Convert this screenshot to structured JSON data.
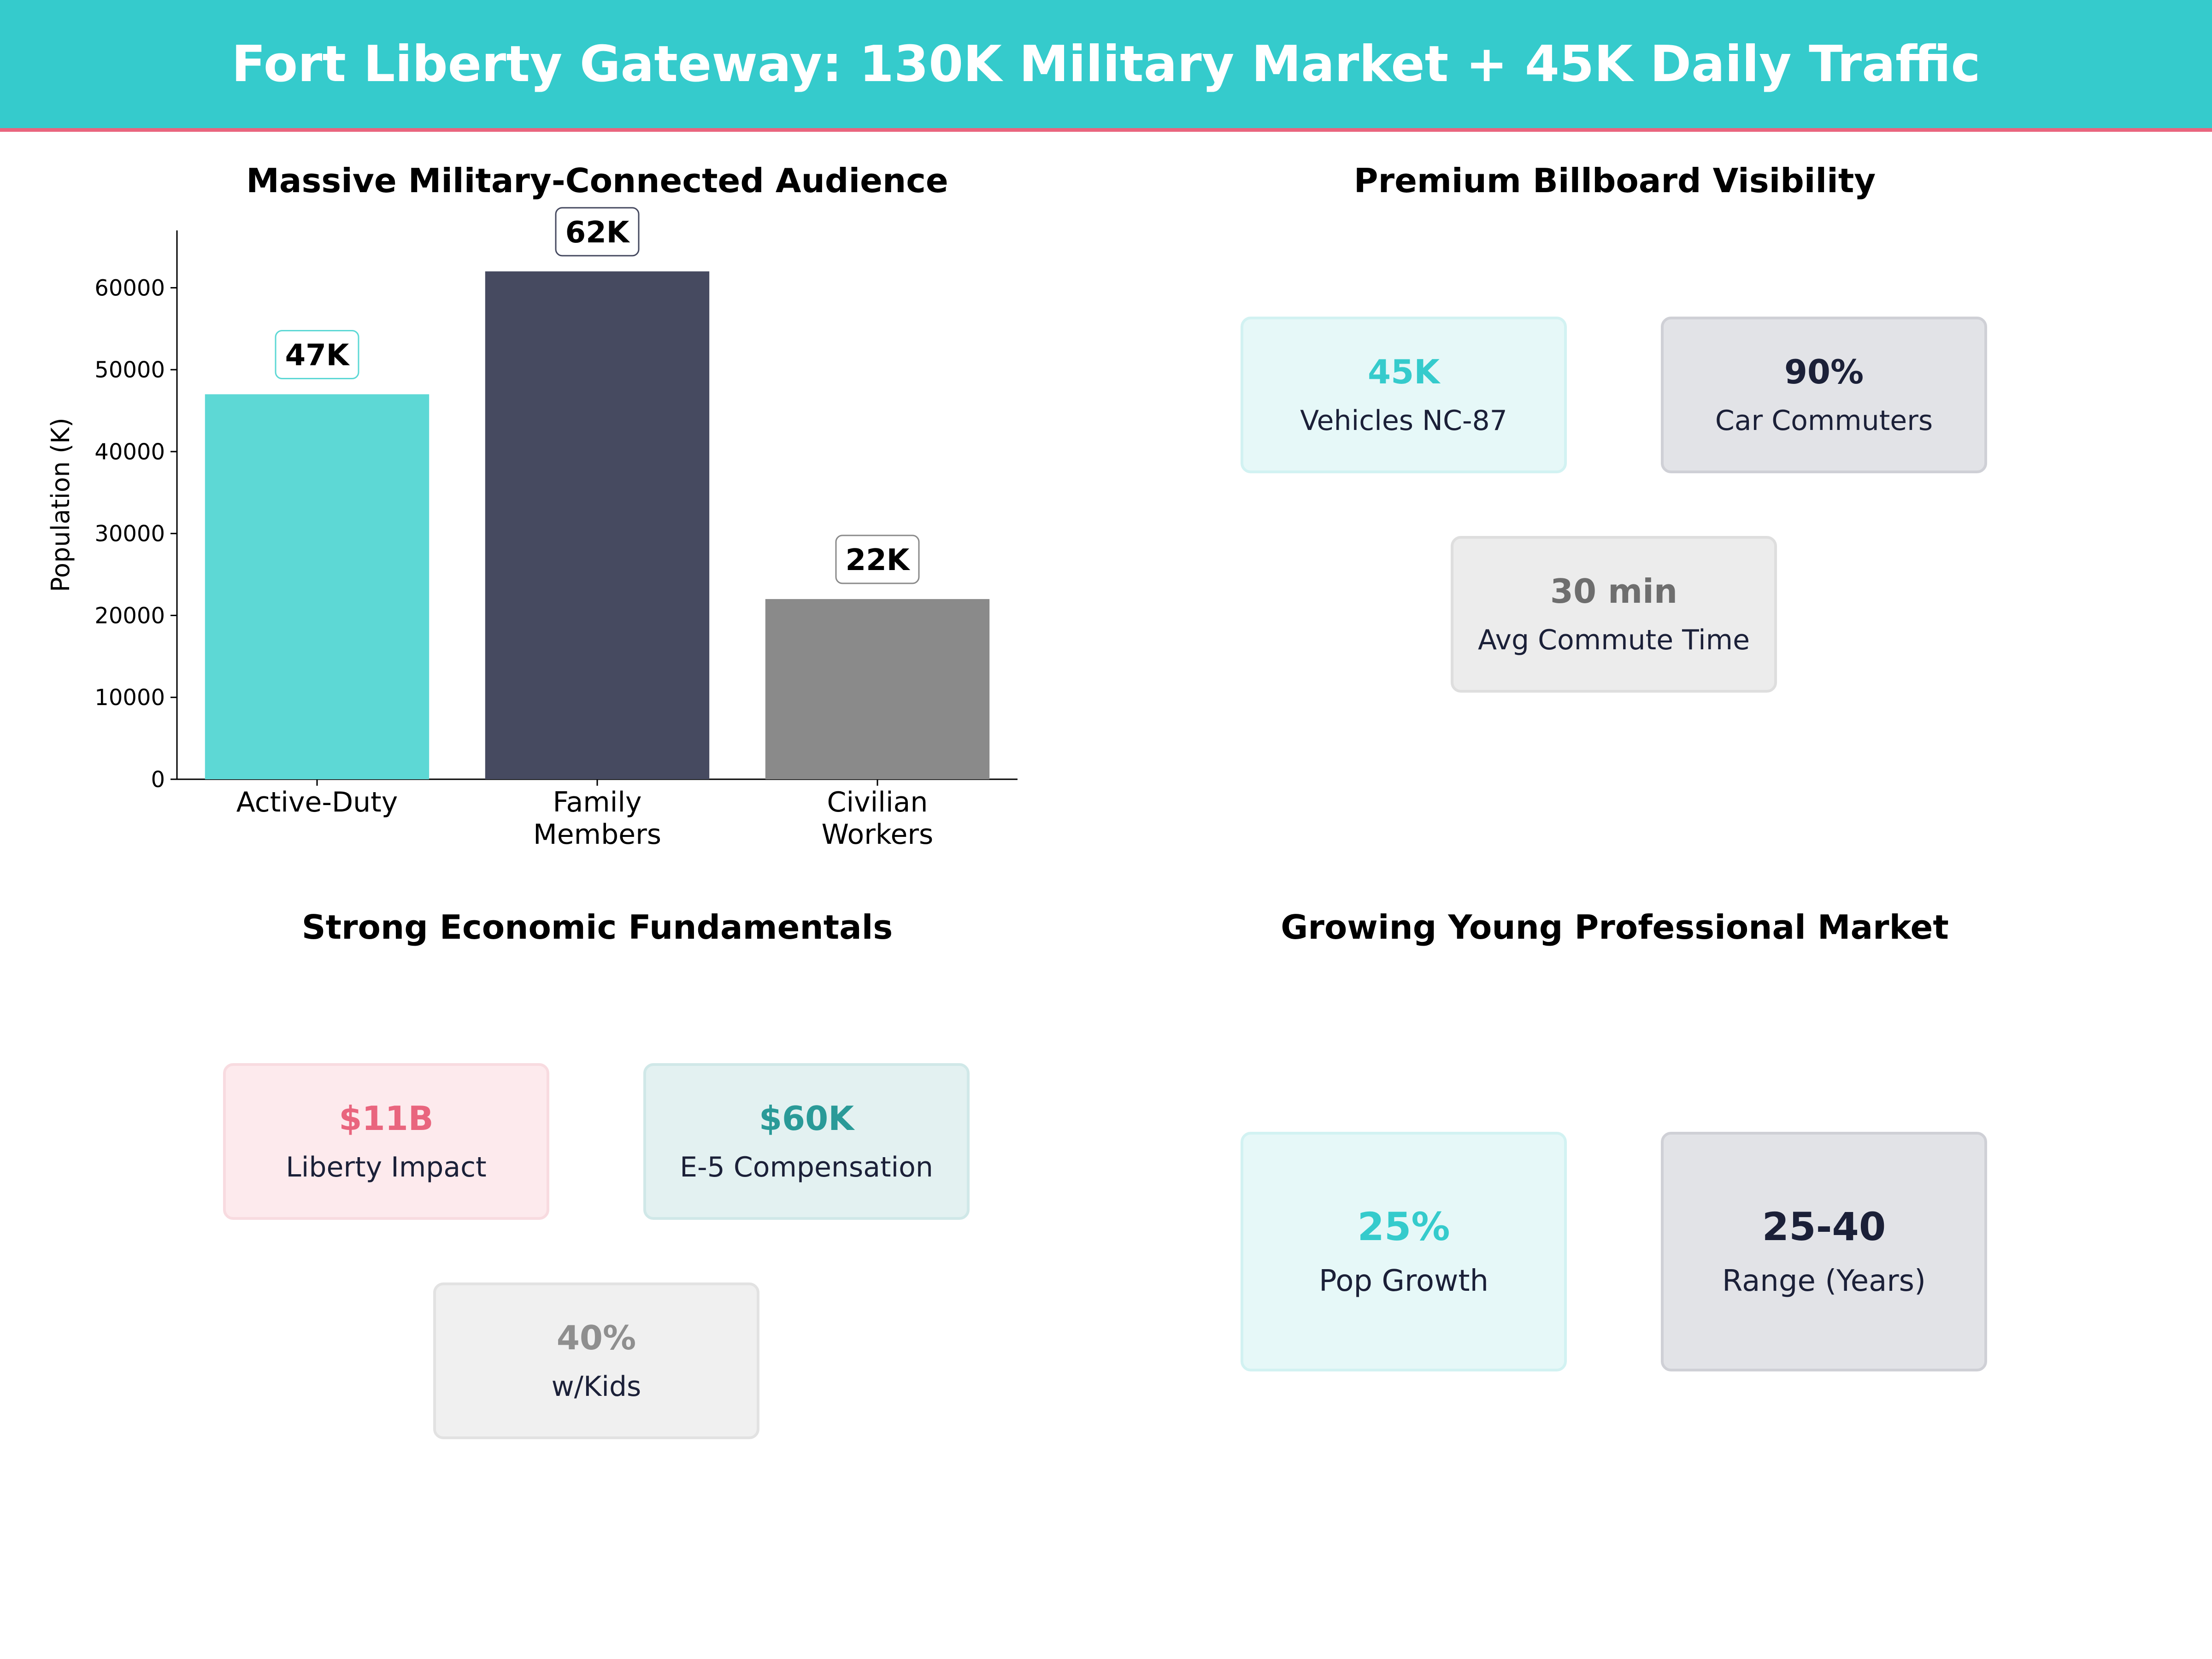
{
  "header": {
    "title": "Fort Liberty Gateway: 130K Military Market + 45K Daily Traffic"
  },
  "colors": {
    "header_bg": "#35cbcc",
    "header_accent": "#e9657e",
    "teal": "#5dd8d5",
    "navy": "#464a60",
    "gray": "#8a8a8a"
  },
  "chart_data": {
    "type": "bar",
    "title": "Massive Military-Connected Audience",
    "xlabel": "",
    "ylabel": "Population (K)",
    "categories": [
      [
        "Active-Duty"
      ],
      [
        "Family",
        "Members"
      ],
      [
        "Civilian",
        "Workers"
      ]
    ],
    "values": [
      47000,
      62000,
      22000
    ],
    "data_labels": [
      "47K",
      "62K",
      "22K"
    ],
    "bar_colors": [
      "#5dd8d5",
      "#464a60",
      "#8a8a8a"
    ],
    "label_border_colors": [
      "#5dd8d5",
      "#464a60",
      "#8a8a8a"
    ],
    "ylim": [
      0,
      67000
    ],
    "yticks": [
      0,
      10000,
      20000,
      30000,
      40000,
      50000,
      60000
    ],
    "grid": false
  },
  "visibility": {
    "title": "Premium Billboard Visibility",
    "cards": [
      {
        "value": "45K",
        "label": "Vehicles NC-87",
        "value_color": "#35cbcc"
      },
      {
        "value": "90%",
        "label": "Car Commuters",
        "value_color": "#1b2038"
      },
      {
        "value": "30 min",
        "label": "Avg Commute Time",
        "value_color": "#6e6e6e"
      }
    ]
  },
  "economic": {
    "title": "Strong Economic Fundamentals",
    "cards": [
      {
        "value": "$11B",
        "label": "Liberty Impact",
        "value_color": "#e9657e"
      },
      {
        "value": "$60K",
        "label": "E-5 Compensation",
        "value_color": "#2a9a98"
      },
      {
        "value": "40%",
        "label": "w/Kids",
        "value_color": "#8f8f8f"
      }
    ]
  },
  "young": {
    "title": "Growing Young Professional Market",
    "cards": [
      {
        "value": "25%",
        "label": "Pop Growth",
        "value_color": "#35cbcc"
      },
      {
        "value": "25-40",
        "label": "Range (Years)",
        "value_color": "#1b2038"
      }
    ]
  }
}
